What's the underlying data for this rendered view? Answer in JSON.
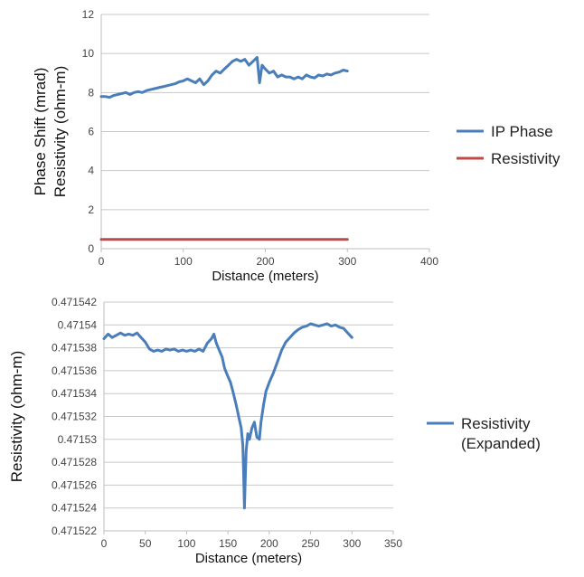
{
  "chart_data": [
    {
      "type": "line",
      "xlabel": "Distance (meters)",
      "ylabel_lines": [
        "Phase Shift (mrad)",
        "Resistivity (ohm-m)"
      ],
      "xlim": [
        0,
        400
      ],
      "ylim": [
        0,
        12
      ],
      "xticks": [
        0,
        100,
        200,
        300,
        400
      ],
      "yticks": [
        0,
        2,
        4,
        6,
        8,
        10,
        12
      ],
      "grid": "horizontal",
      "legend_position": "right",
      "series": [
        {
          "name": "IP Phase",
          "color": "#4a7ebb",
          "x": [
            0,
            5,
            10,
            15,
            20,
            25,
            30,
            35,
            40,
            45,
            50,
            55,
            60,
            65,
            70,
            75,
            80,
            85,
            90,
            95,
            100,
            105,
            110,
            115,
            120,
            125,
            130,
            135,
            140,
            145,
            150,
            155,
            160,
            165,
            170,
            175,
            180,
            185,
            190,
            193,
            196,
            200,
            205,
            210,
            215,
            220,
            225,
            230,
            235,
            240,
            245,
            250,
            255,
            260,
            265,
            270,
            275,
            280,
            285,
            290,
            295,
            300
          ],
          "y": [
            7.8,
            7.8,
            7.75,
            7.85,
            7.9,
            7.95,
            8.0,
            7.9,
            8.0,
            8.05,
            8.0,
            8.1,
            8.15,
            8.2,
            8.25,
            8.3,
            8.35,
            8.4,
            8.45,
            8.55,
            8.6,
            8.7,
            8.6,
            8.5,
            8.7,
            8.4,
            8.6,
            8.9,
            9.1,
            9.0,
            9.2,
            9.4,
            9.6,
            9.7,
            9.6,
            9.7,
            9.4,
            9.6,
            9.8,
            8.5,
            9.4,
            9.2,
            9.0,
            9.1,
            8.8,
            8.9,
            8.8,
            8.8,
            8.7,
            8.8,
            8.7,
            8.9,
            8.8,
            8.75,
            8.9,
            8.85,
            8.95,
            8.9,
            9.0,
            9.05,
            9.15,
            9.1
          ]
        },
        {
          "name": "Resistivity",
          "color": "#be4b48",
          "x": [
            0,
            300
          ],
          "y": [
            0.471538,
            0.471538
          ]
        }
      ]
    },
    {
      "type": "line",
      "xlabel": "Distance (meters)",
      "ylabel": "Resistivity (ohm-m)",
      "xlim": [
        0,
        350
      ],
      "ylim": [
        0.471522,
        0.471542
      ],
      "xticks": [
        0,
        50,
        100,
        150,
        200,
        250,
        300,
        350
      ],
      "yticks": [
        "0.471522",
        "0.471524",
        "0.471526",
        "0.471528",
        "0.47153",
        "0.471532",
        "0.471534",
        "0.471536",
        "0.471538",
        "0.47154",
        "0.471542"
      ],
      "grid": "horizontal",
      "legend_position": "right",
      "series": [
        {
          "name": "Resistivity (Expanded)",
          "legend_lines": [
            "Resistivity",
            "(Expanded)"
          ],
          "color": "#4a7ebb",
          "x": [
            0,
            5,
            10,
            15,
            20,
            25,
            30,
            35,
            40,
            45,
            50,
            55,
            60,
            65,
            70,
            75,
            80,
            85,
            90,
            95,
            100,
            105,
            110,
            115,
            120,
            125,
            130,
            133,
            136,
            140,
            143,
            146,
            150,
            153,
            156,
            160,
            163,
            166,
            168,
            169,
            170,
            171,
            172,
            174,
            176,
            179,
            182,
            185,
            188,
            190,
            193,
            196,
            200,
            205,
            210,
            215,
            220,
            225,
            230,
            235,
            240,
            245,
            250,
            255,
            260,
            265,
            270,
            275,
            280,
            285,
            290,
            295,
            300
          ],
          "y": [
            0.4715388,
            0.4715392,
            0.4715389,
            0.4715391,
            0.4715393,
            0.4715391,
            0.4715392,
            0.4715391,
            0.4715393,
            0.4715389,
            0.4715385,
            0.4715379,
            0.4715377,
            0.4715378,
            0.4715377,
            0.4715379,
            0.4715378,
            0.4715379,
            0.4715377,
            0.4715378,
            0.4715377,
            0.4715378,
            0.4715377,
            0.4715379,
            0.4715377,
            0.4715384,
            0.4715388,
            0.4715392,
            0.4715384,
            0.4715377,
            0.4715372,
            0.4715362,
            0.4715355,
            0.471535,
            0.4715342,
            0.471533,
            0.471532,
            0.471531,
            0.4715295,
            0.471527,
            0.471524,
            0.4715265,
            0.471529,
            0.4715305,
            0.47153,
            0.471531,
            0.4715315,
            0.4715302,
            0.47153,
            0.4715315,
            0.471533,
            0.4715342,
            0.471535,
            0.4715358,
            0.4715368,
            0.4715378,
            0.4715385,
            0.4715389,
            0.4715393,
            0.4715396,
            0.4715398,
            0.4715399,
            0.4715401,
            0.47154,
            0.4715399,
            0.47154,
            0.4715401,
            0.4715399,
            0.47154,
            0.4715398,
            0.4715397,
            0.4715393,
            0.4715389
          ]
        }
      ]
    }
  ]
}
